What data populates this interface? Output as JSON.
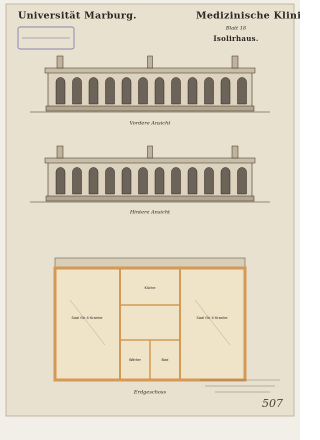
{
  "header": {
    "left_title": "Universität Marburg.",
    "right_title": "Medizinische Klinik.",
    "sheet": "Blatt 18",
    "building": "Isolirhaus."
  },
  "drawings": [
    {
      "label": "Vordere Ansicht"
    },
    {
      "label": "Hintere Ansicht"
    },
    {
      "label": "Erdgeschoss"
    }
  ],
  "rooms": [
    "Saal für 4 Kranke",
    "Saal für 4 Kranke",
    "Küche",
    "Wärter",
    "Bad"
  ],
  "catalog_number": "507"
}
